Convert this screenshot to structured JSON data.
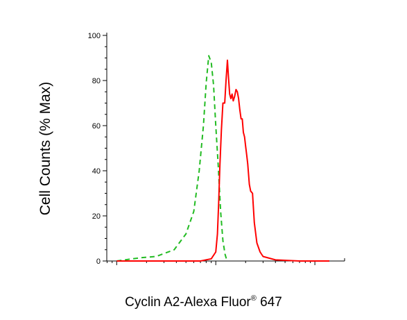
{
  "chart_data": {
    "type": "line",
    "xlabel": "Cyclin A2-Alexa Fluor",
    "xlabel_superscript": "®",
    "xlabel_suffix": " 647",
    "ylabel": "Cell Counts (% Max)",
    "ylim": [
      0,
      100
    ],
    "y_ticks": [
      "0",
      "20",
      "40",
      "60",
      "80",
      "100"
    ],
    "x_scale": "log",
    "x_tick_labels": [],
    "grid": false,
    "legend": "none",
    "series": [
      {
        "style": "dashed",
        "color": "#22bb22",
        "x": [
          10,
          12,
          18,
          25,
          38,
          50,
          60,
          68,
          75,
          80,
          85,
          90,
          95,
          100,
          106,
          112,
          118,
          124,
          128
        ],
        "y": [
          0,
          0.5,
          1.5,
          2,
          5,
          12,
          22,
          40,
          60,
          79,
          91,
          88,
          78,
          60,
          42,
          22,
          9,
          3,
          1
        ]
      },
      {
        "style": "solid",
        "color": "#ff0000",
        "x": [
          10,
          70,
          90,
          100,
          104,
          107,
          110,
          114,
          118,
          123,
          127,
          131,
          134,
          138,
          142,
          146,
          150,
          155,
          160,
          165,
          170,
          175,
          180,
          185,
          190,
          195,
          200,
          205,
          210,
          218,
          225,
          235,
          245,
          260,
          280,
          300,
          400,
          700,
          1000,
          1400
        ],
        "y": [
          0,
          0,
          1,
          4,
          12,
          26,
          42,
          58,
          70,
          70,
          80,
          89,
          82,
          74,
          72,
          74,
          71,
          73,
          76,
          75,
          72,
          67,
          63,
          63,
          57,
          55,
          51,
          47,
          43,
          34,
          31,
          30,
          17,
          8,
          4,
          2,
          0.5,
          0,
          0,
          0
        ]
      }
    ]
  }
}
